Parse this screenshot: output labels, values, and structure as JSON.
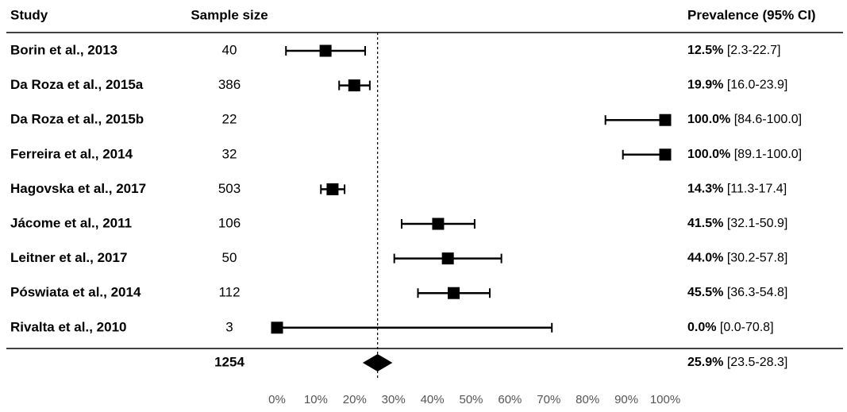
{
  "chart_data": {
    "type": "forest",
    "headers": {
      "study": "Study",
      "sample": "Sample size",
      "estimate": "Prevalence (95% CI)"
    },
    "rows": [
      {
        "study": "Borin et al., 2013",
        "n": "40",
        "value": 12.5,
        "lo": 2.3,
        "hi": 22.7,
        "est": "12.5%",
        "ci": "[2.3-22.7]"
      },
      {
        "study": "Da Roza et al., 2015a",
        "n": "386",
        "value": 19.9,
        "lo": 16.0,
        "hi": 23.9,
        "est": "19.9%",
        "ci": "[16.0-23.9]"
      },
      {
        "study": "Da Roza et al., 2015b",
        "n": "22",
        "value": 100.0,
        "lo": 84.6,
        "hi": 100.0,
        "est": "100.0%",
        "ci": "[84.6-100.0]"
      },
      {
        "study": "Ferreira et al., 2014",
        "n": "32",
        "value": 100.0,
        "lo": 89.1,
        "hi": 100.0,
        "est": "100.0%",
        "ci": "[89.1-100.0]"
      },
      {
        "study": "Hagovska et al., 2017",
        "n": "503",
        "value": 14.3,
        "lo": 11.3,
        "hi": 17.4,
        "est": "14.3%",
        "ci": "[11.3-17.4]"
      },
      {
        "study": "Jácome et al., 2011",
        "n": "106",
        "value": 41.5,
        "lo": 32.1,
        "hi": 50.9,
        "est": "41.5%",
        "ci": "[32.1-50.9]"
      },
      {
        "study": "Leitner et al., 2017",
        "n": "50",
        "value": 44.0,
        "lo": 30.2,
        "hi": 57.8,
        "est": "44.0%",
        "ci": "[30.2-57.8]"
      },
      {
        "study": "Póswiata et al., 2014",
        "n": "112",
        "value": 45.5,
        "lo": 36.3,
        "hi": 54.8,
        "est": "45.5%",
        "ci": "[36.3-54.8]"
      },
      {
        "study": "Rivalta et al., 2010",
        "n": "3",
        "value": 0.0,
        "lo": 0.0,
        "hi": 70.8,
        "est": "0.0%",
        "ci": "[0.0-70.8]"
      }
    ],
    "pooled": {
      "n": "1254",
      "value": 25.9,
      "lo": 23.5,
      "hi": 28.3,
      "est": "25.9%",
      "ci": "[23.5-28.3]"
    },
    "x_ticks": [
      "0%",
      "10%",
      "20%",
      "30%",
      "40%",
      "50%",
      "60%",
      "70%",
      "80%",
      "90%",
      "100%"
    ],
    "xlim": [
      0,
      100
    ],
    "reference_line": 25.9
  }
}
